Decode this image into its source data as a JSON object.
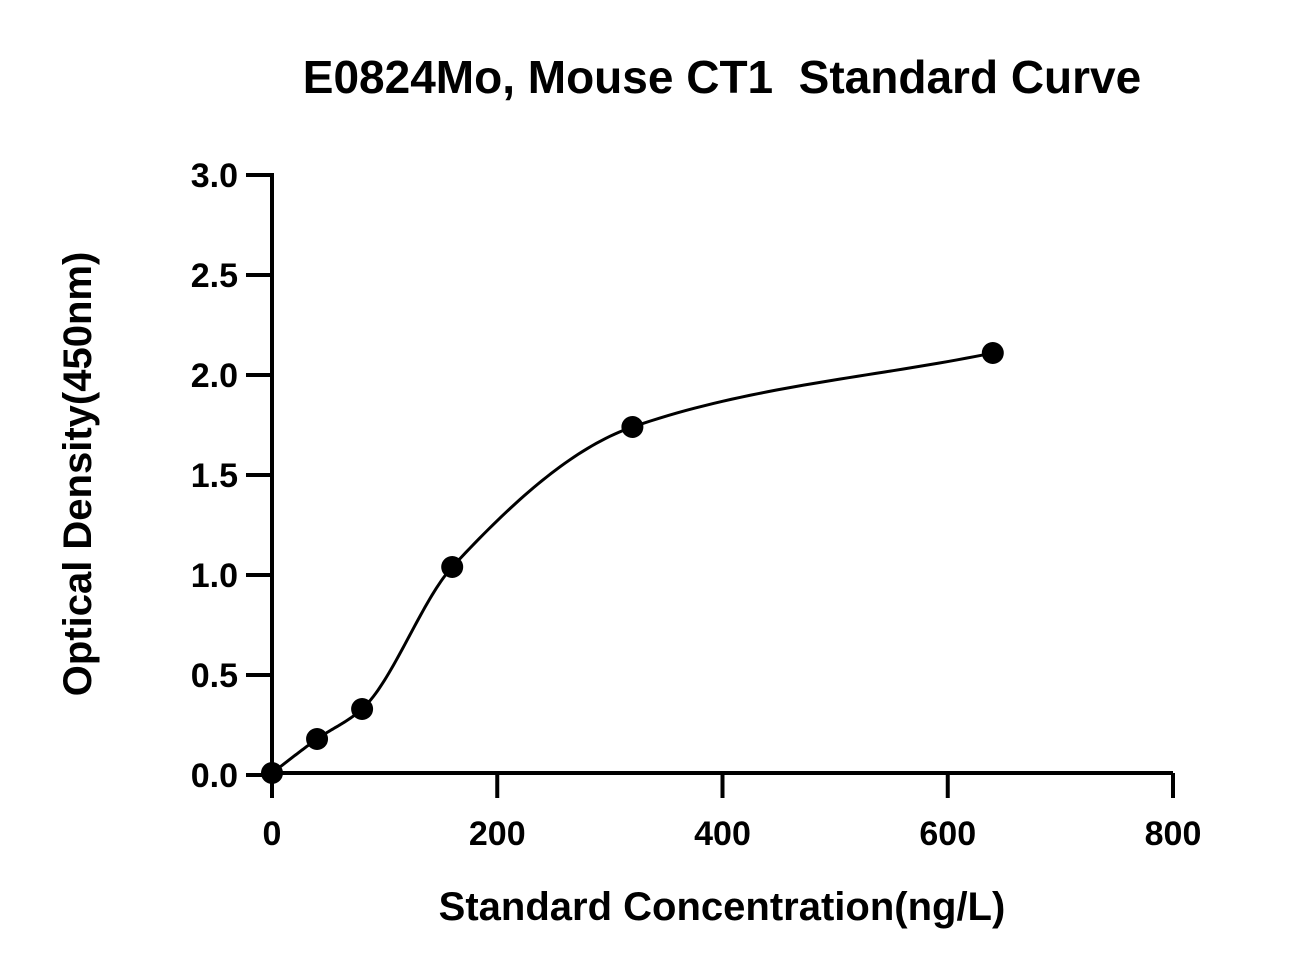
{
  "chart_data": {
    "type": "scatter",
    "title": "E0824Mo, Mouse CT1  Standard Curve",
    "xlabel": "Standard Concentration(ng/L)",
    "ylabel": "Optical Density(450nm)",
    "xlim": [
      0,
      800
    ],
    "ylim": [
      0,
      3.0
    ],
    "x_ticks": [
      "0",
      "200",
      "400",
      "600",
      "800"
    ],
    "y_ticks": [
      "0.0",
      "0.5",
      "1.0",
      "1.5",
      "2.0",
      "2.5",
      "3.0"
    ],
    "grid": false,
    "legend": "none",
    "series": [
      {
        "x": [
          0,
          40,
          80,
          160,
          320,
          640
        ],
        "y": [
          0.01,
          0.18,
          0.33,
          1.04,
          1.74,
          2.11
        ],
        "marker": "filled-circle",
        "fit": "four-parameter-logistic-curve",
        "color": "#000000"
      }
    ]
  }
}
